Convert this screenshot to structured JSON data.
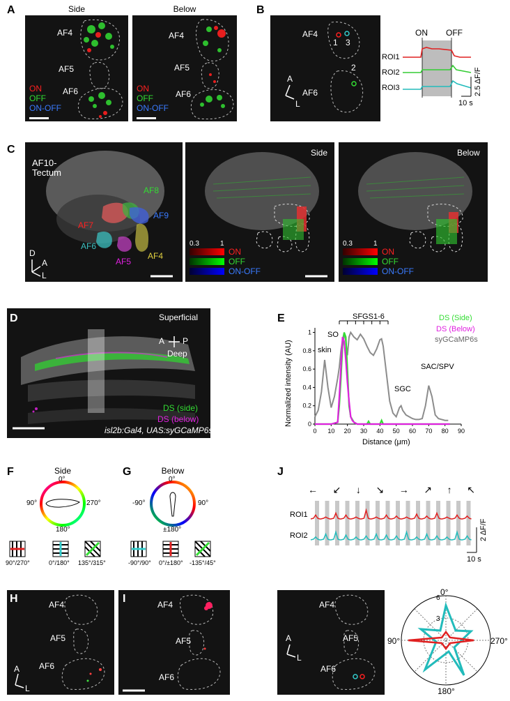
{
  "panels": {
    "A": {
      "label": "A",
      "side": "Side",
      "below": "Below",
      "regions": [
        "AF4",
        "AF5",
        "AF6"
      ],
      "legend": [
        "ON",
        "OFF",
        "ON-OFF"
      ]
    },
    "B": {
      "label": "B",
      "regions": [
        "AF4",
        "AF6"
      ],
      "roi_nums": [
        "1",
        "3",
        "2"
      ],
      "axis": [
        "A",
        "L"
      ],
      "on": "ON",
      "off": "OFF",
      "traces": [
        "ROI1",
        "ROI2",
        "ROI3"
      ],
      "scale_y": "2.5 ΔF/F",
      "scale_x": "10 s"
    },
    "C": {
      "label": "C",
      "title_line1": "AF10-",
      "title_line2": "Tectum",
      "regions": [
        "AF8",
        "AF9",
        "AF7",
        "AF6",
        "AF5",
        "AF4"
      ],
      "axis": [
        "D",
        "A",
        "L"
      ],
      "side": "Side",
      "below": "Below",
      "scale_lo": "0.3",
      "scale_hi": "1",
      "legend": [
        "ON",
        "OFF",
        "ON-OFF"
      ]
    },
    "D": {
      "label": "D",
      "superficial": "Superficial",
      "deep": "Deep",
      "a": "A",
      "p": "P",
      "ds_side": "DS (side)",
      "ds_below": "DS (below)",
      "genotype": "isl2b:Gal4, UAS:syGCaMP6s"
    },
    "E": {
      "label": "E",
      "sfgs": "SFGS1-6",
      "ylabel": "Normalized intensity (AU)",
      "xlabel": "Distance (μm)",
      "annotations": [
        "skin",
        "SO",
        "SGC",
        "SAC/SPV"
      ],
      "legend": [
        "DS (Side)",
        "DS (Below)",
        "syGCaMP6s"
      ]
    },
    "F": {
      "label": "F",
      "title": "Side",
      "angles": [
        "0°",
        "90°",
        "270°",
        "180°"
      ],
      "stim": [
        "90°/270°",
        "0°/180°",
        "135°/315°"
      ]
    },
    "G": {
      "label": "G",
      "title": "Below",
      "angles": [
        "0°",
        "-90°",
        "90°",
        "±180°"
      ],
      "stim": [
        "-90°/90°",
        "0°/±180°",
        "-135°/45°"
      ]
    },
    "H": {
      "label": "H",
      "regions": [
        "AF4",
        "AF5",
        "AF6"
      ],
      "axis": [
        "A",
        "L"
      ]
    },
    "I": {
      "label": "I",
      "regions": [
        "AF4",
        "AF5",
        "AF6"
      ]
    },
    "J": {
      "label": "J",
      "traces": [
        "ROI1",
        "ROI2"
      ],
      "scale_y": "2 ΔF/F",
      "scale_x": "10 s",
      "regions": [
        "AF4",
        "AF5",
        "AF6"
      ],
      "axis": [
        "A",
        "L"
      ],
      "polar_angles": [
        "0°",
        "90°",
        "270°",
        "180°"
      ],
      "polar_ticks": [
        "6",
        "3"
      ],
      "arrows": [
        "←",
        "↙",
        "↓",
        "↘",
        "→",
        "↗",
        "↑",
        "↖"
      ]
    }
  },
  "chart_data": {
    "type": "line",
    "xlabel": "Distance (μm)",
    "ylabel": "Normalized intensity (AU)",
    "xlim": [
      0,
      90
    ],
    "ylim": [
      0,
      1.05
    ],
    "xticks": [
      0,
      10,
      20,
      30,
      40,
      50,
      60,
      70,
      80,
      90
    ],
    "yticks": [
      0,
      0.2,
      0.4,
      0.6,
      0.8,
      1
    ],
    "series": [
      {
        "name": "syGCaMP6s",
        "color": "#8c8c8c",
        "x": [
          0,
          2,
          4,
          6,
          8,
          10,
          12,
          14,
          15,
          16,
          17,
          18,
          19,
          20,
          21,
          22,
          24,
          26,
          28,
          30,
          32,
          34,
          36,
          38,
          40,
          41,
          42,
          44,
          46,
          48,
          50,
          52,
          53,
          54,
          56,
          58,
          60,
          62,
          64,
          66,
          68,
          70,
          72,
          74,
          76,
          78,
          80,
          82
        ],
        "y": [
          0.08,
          0.15,
          0.35,
          0.7,
          0.4,
          0.18,
          0.3,
          0.5,
          0.62,
          0.8,
          0.92,
          1.0,
          0.9,
          0.75,
          0.95,
          1.0,
          0.95,
          0.92,
          0.98,
          0.93,
          0.85,
          0.78,
          0.75,
          0.82,
          0.92,
          0.93,
          0.85,
          0.55,
          0.25,
          0.12,
          0.08,
          0.18,
          0.2,
          0.15,
          0.1,
          0.08,
          0.06,
          0.05,
          0.05,
          0.06,
          0.2,
          0.42,
          0.3,
          0.1,
          0.06,
          0.05,
          0.04,
          0.04
        ]
      },
      {
        "name": "DS (Side)",
        "color": "#33dd33",
        "x": [
          0,
          10,
          14,
          15,
          16,
          17,
          18,
          19,
          20,
          21,
          22,
          24,
          26,
          28,
          32,
          33,
          34,
          38,
          40,
          41,
          42,
          44,
          50,
          83
        ],
        "y": [
          0,
          0,
          0.02,
          0.2,
          0.5,
          0.85,
          1.0,
          0.95,
          0.6,
          0.2,
          0.08,
          0.02,
          0,
          0,
          0,
          0.03,
          0,
          0,
          0,
          0.04,
          0,
          0,
          0,
          0
        ]
      },
      {
        "name": "DS (Below)",
        "color": "#e020e0",
        "x": [
          0,
          10,
          14,
          15,
          16,
          17,
          18,
          19,
          20,
          21,
          22,
          23,
          24,
          26,
          83
        ],
        "y": [
          0,
          0,
          0.02,
          0.3,
          0.62,
          0.95,
          0.9,
          0.7,
          0.45,
          0.25,
          0.08,
          0.04,
          0.02,
          0,
          0
        ]
      }
    ]
  }
}
